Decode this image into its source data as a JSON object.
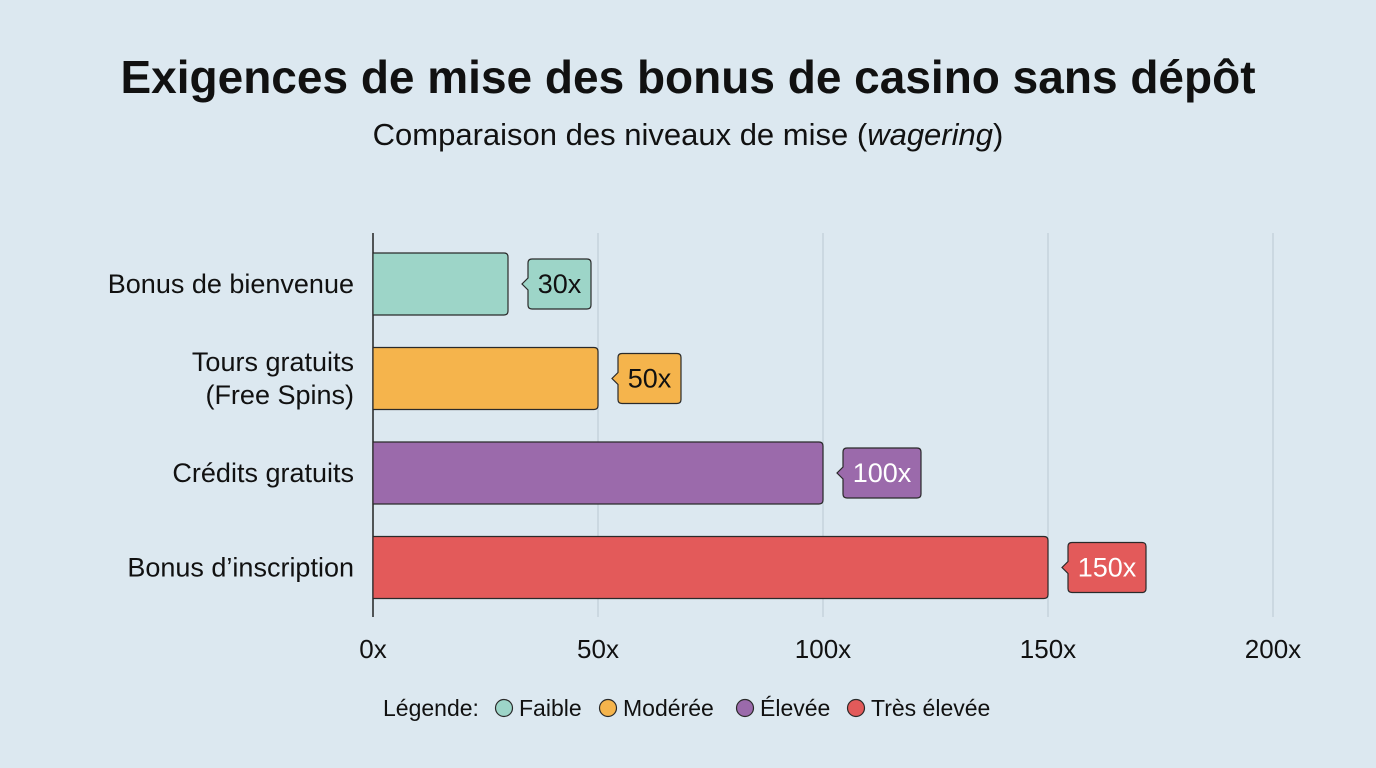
{
  "chart_data": {
    "type": "bar",
    "orientation": "horizontal",
    "title": "Exigences de mise des bonus de casino sans dépôt",
    "subtitle_before": "Comparaison des niveaux de mise (",
    "subtitle_em": "wagering",
    "subtitle_after": ")",
    "categories": [
      [
        "Bonus de bienvenue"
      ],
      [
        "Tours gratuits",
        "(Free Spins)"
      ],
      [
        "Crédits gratuits"
      ],
      [
        "Bonus d’inscription"
      ]
    ],
    "values": [
      30,
      50,
      100,
      150
    ],
    "value_labels": [
      "30x",
      "50x",
      "100x",
      "150x"
    ],
    "levels": [
      "Faible",
      "Modérée",
      "Élevée",
      "Très élevée"
    ],
    "colors": [
      "#9dd5c8",
      "#f5b44c",
      "#9b6aab",
      "#e35a5a"
    ],
    "label_text_colors": [
      "#111111",
      "#111111",
      "#ffffff",
      "#ffffff"
    ],
    "xlim": [
      0,
      200
    ],
    "xticks": [
      0,
      50,
      100,
      150,
      200
    ],
    "xtick_labels": [
      "0x",
      "50x",
      "100x",
      "150x",
      "200x"
    ],
    "grid": true,
    "legend": {
      "title": "Légende:",
      "entries": [
        "Faible",
        "Modérée",
        "Élevée",
        "Très élevée"
      ],
      "colors": [
        "#9dd5c8",
        "#f5b44c",
        "#9b6aab",
        "#e35a5a"
      ],
      "placement": "bottom-center"
    }
  }
}
